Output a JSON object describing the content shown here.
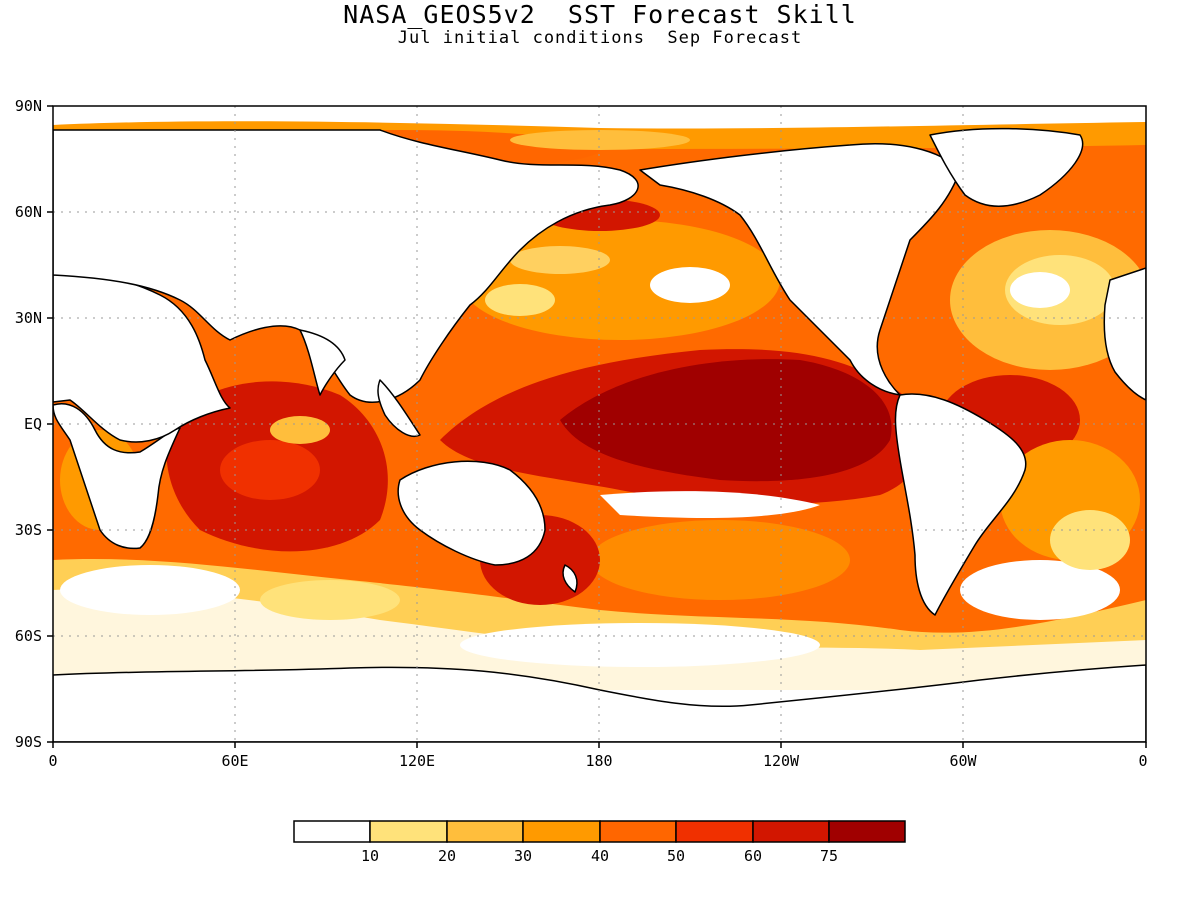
{
  "map": {
    "title": "NASA_GEOS5v2  SST Forecast Skill",
    "subtitle": "Jul initial conditions  Sep Forecast",
    "lat_ticks": [
      "90N",
      "60N",
      "30N",
      "EQ",
      "30S",
      "60S",
      "90S"
    ],
    "lon_ticks": [
      "0",
      "60E",
      "120E",
      "180",
      "120W",
      "60W",
      "0"
    ],
    "projection": "cylindrical equidistant, 0-360E",
    "grid": true,
    "field": "SST forecast skill"
  },
  "colorbar": {
    "labels": [
      "10",
      "20",
      "30",
      "40",
      "50",
      "60",
      "75"
    ],
    "colors": [
      "#ffffff",
      "#ffe27a",
      "#ffbe3c",
      "#ff9a00",
      "#ff6600",
      "#f03000",
      "#d21600",
      "#a00000"
    ]
  },
  "colors": {
    "land": "#ffffff",
    "coastline": "#000000",
    "background": "#ffffff"
  }
}
